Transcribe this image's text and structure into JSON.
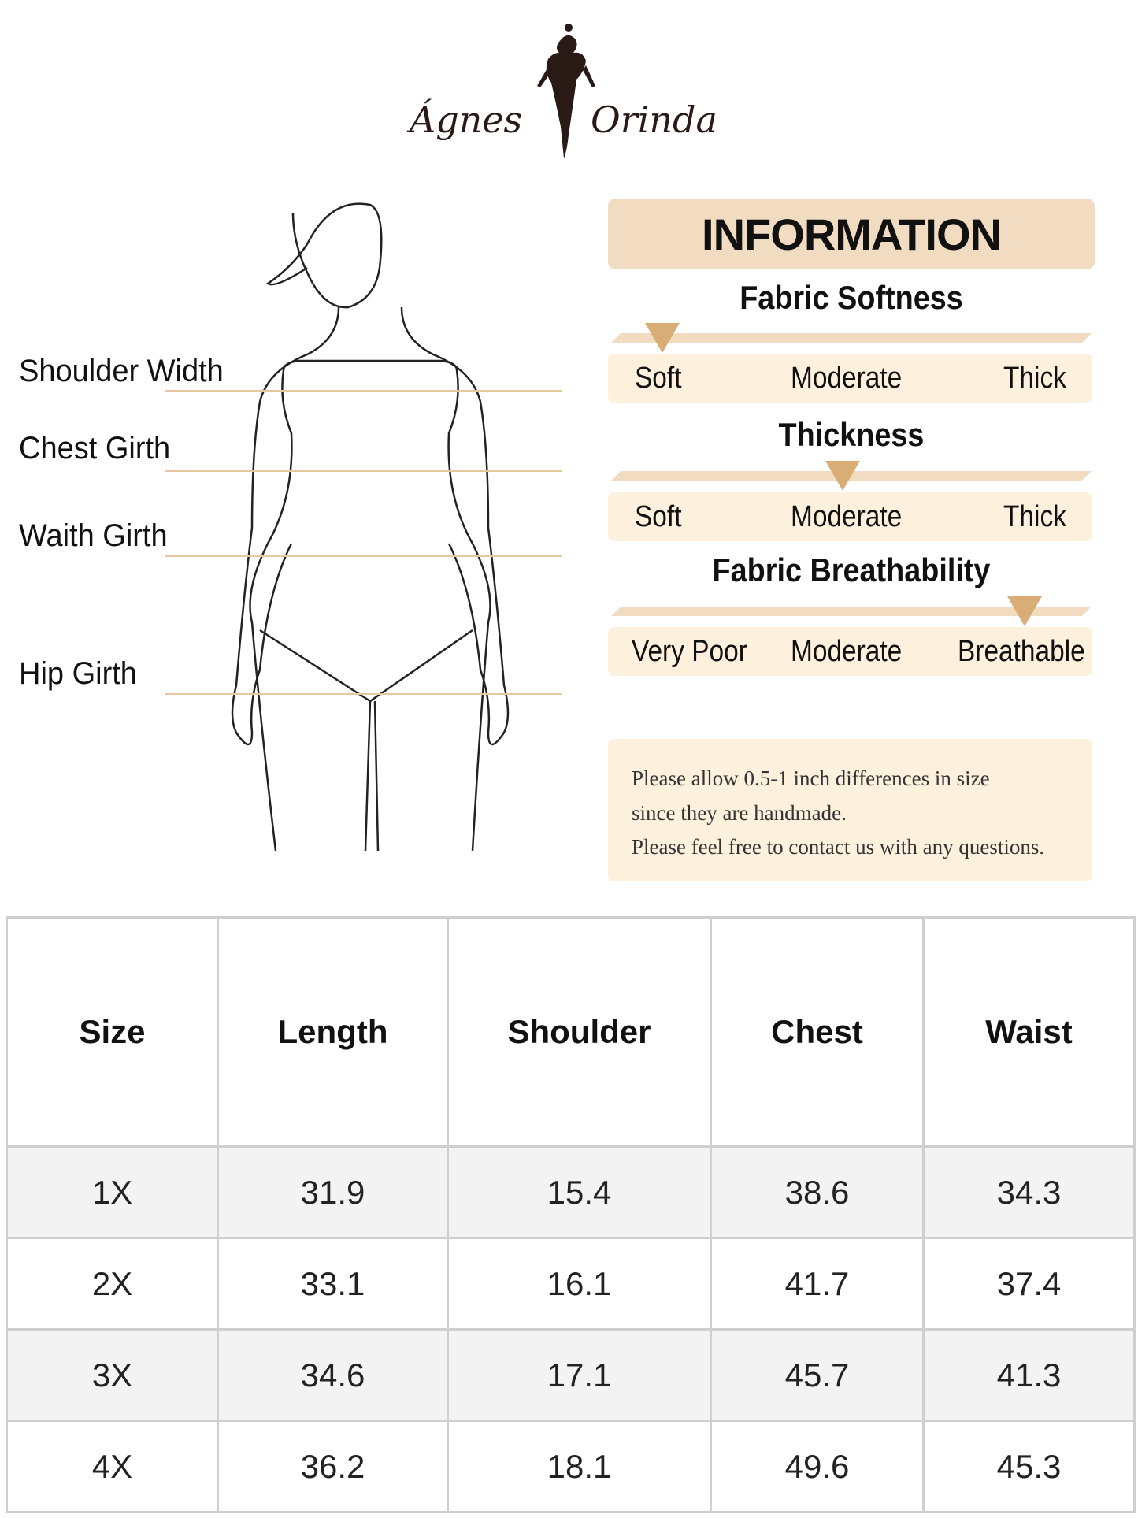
{
  "brand": {
    "logo_text_left": "Ágnes",
    "logo_text_right": "Orinda"
  },
  "measurements": {
    "labels": [
      "Shoulder Width",
      "Chest Girth",
      "Waith Girth",
      "Hip Girth"
    ],
    "line_color": "#e9c79c"
  },
  "information": {
    "title": "INFORMATION",
    "sections": [
      {
        "title": "Fabric Softness",
        "scale": [
          "Soft",
          "Moderate",
          "Thick"
        ],
        "selected": "Soft"
      },
      {
        "title": "Thickness",
        "scale": [
          "Soft",
          "Moderate",
          "Thick"
        ],
        "selected": "Moderate"
      },
      {
        "title": "Fabric Breathability",
        "scale": [
          "Very Poor",
          "Moderate",
          "Breathable"
        ],
        "selected": "Breathable"
      }
    ],
    "accent_color": "#d9ae76"
  },
  "note": {
    "lines": [
      "Please allow 0.5-1 inch differences in size",
      "since they are handmade.",
      "Please feel free to contact us with any questions."
    ]
  },
  "size_table": {
    "headers": [
      "Size",
      "Length",
      "Shoulder",
      "Chest",
      "Waist"
    ],
    "rows": [
      [
        "1X",
        "31.9",
        "15.4",
        "38.6",
        "34.3"
      ],
      [
        "2X",
        "33.1",
        "16.1",
        "41.7",
        "37.4"
      ],
      [
        "3X",
        "34.6",
        "17.1",
        "45.7",
        "41.3"
      ],
      [
        "4X",
        "36.2",
        "18.1",
        "49.6",
        "45.3"
      ]
    ]
  }
}
